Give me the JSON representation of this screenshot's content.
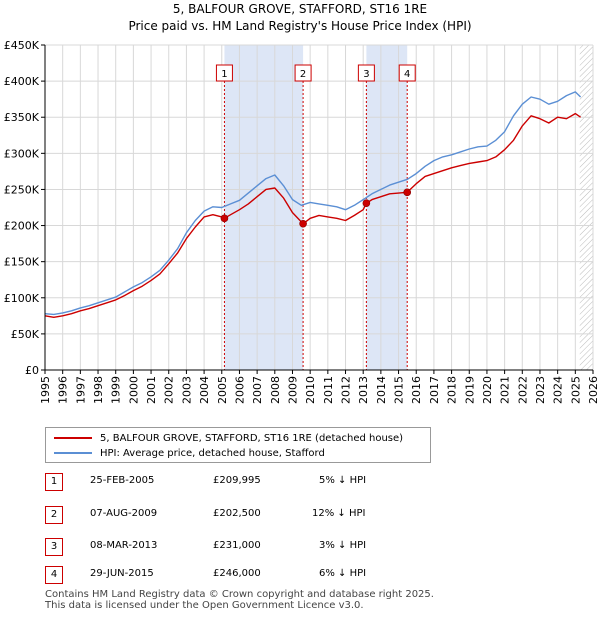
{
  "chart_data": {
    "type": "line",
    "title": "5, BALFOUR GROVE, STAFFORD, ST16 1RE",
    "subtitle": "Price paid vs. HM Land Registry's House Price Index (HPI)",
    "xlabel": "",
    "ylabel": "",
    "xlim": [
      1995,
      2026
    ],
    "ylim": [
      0,
      450000
    ],
    "x_ticks": [
      "1995",
      "1996",
      "1997",
      "1998",
      "1999",
      "2000",
      "2001",
      "2002",
      "2003",
      "2004",
      "2005",
      "2006",
      "2007",
      "2008",
      "2009",
      "2010",
      "2011",
      "2012",
      "2013",
      "2014",
      "2015",
      "2016",
      "2017",
      "2018",
      "2019",
      "2020",
      "2021",
      "2022",
      "2023",
      "2024",
      "2025",
      "2026"
    ],
    "y_ticks": [
      {
        "value": 0,
        "label": "£0"
      },
      {
        "value": 50000,
        "label": "£50K"
      },
      {
        "value": 100000,
        "label": "£100K"
      },
      {
        "value": 150000,
        "label": "£150K"
      },
      {
        "value": 200000,
        "label": "£200K"
      },
      {
        "value": 250000,
        "label": "£250K"
      },
      {
        "value": 300000,
        "label": "£300K"
      },
      {
        "value": 350000,
        "label": "£350K"
      },
      {
        "value": 400000,
        "label": "£400K"
      },
      {
        "value": 450000,
        "label": "£450K"
      }
    ],
    "grid": true,
    "series": [
      {
        "name": "5, BALFOUR GROVE, STAFFORD, ST16 1RE (detached house)",
        "color": "#cc0000",
        "x": [
          1995.0,
          1995.5,
          1996.0,
          1996.5,
          1997.0,
          1997.5,
          1998.0,
          1998.5,
          1999.0,
          1999.5,
          2000.0,
          2000.5,
          2001.0,
          2001.5,
          2002.0,
          2002.5,
          2003.0,
          2003.5,
          2004.0,
          2004.5,
          2005.0,
          2005.15,
          2005.5,
          2006.0,
          2006.5,
          2007.0,
          2007.5,
          2008.0,
          2008.5,
          2009.0,
          2009.5,
          2009.6,
          2010.0,
          2010.5,
          2011.0,
          2011.5,
          2012.0,
          2012.5,
          2013.0,
          2013.18,
          2013.5,
          2014.0,
          2014.5,
          2015.0,
          2015.49,
          2016.0,
          2016.5,
          2017.0,
          2017.5,
          2018.0,
          2018.5,
          2019.0,
          2019.5,
          2020.0,
          2020.5,
          2021.0,
          2021.5,
          2022.0,
          2022.5,
          2023.0,
          2023.5,
          2024.0,
          2024.5,
          2025.0,
          2025.3
        ],
        "values": [
          75000,
          73000,
          75000,
          78000,
          82000,
          85000,
          89000,
          93000,
          97000,
          103000,
          110000,
          116000,
          124000,
          133000,
          147000,
          162000,
          182000,
          198000,
          212000,
          215000,
          212000,
          209995,
          215000,
          222000,
          230000,
          240000,
          250000,
          252000,
          238000,
          218000,
          205000,
          202500,
          210000,
          214000,
          212000,
          210000,
          207000,
          214000,
          222000,
          231000,
          236000,
          240000,
          244000,
          245000,
          246000,
          258000,
          268000,
          272000,
          276000,
          280000,
          283000,
          286000,
          288000,
          290000,
          295000,
          305000,
          318000,
          338000,
          352000,
          348000,
          342000,
          350000,
          348000,
          355000,
          350000
        ]
      },
      {
        "name": "HPI: Average price, detached house, Stafford",
        "color": "#5b8fd4",
        "x": [
          1995.0,
          1995.5,
          1996.0,
          1996.5,
          1997.0,
          1997.5,
          1998.0,
          1998.5,
          1999.0,
          1999.5,
          2000.0,
          2000.5,
          2001.0,
          2001.5,
          2002.0,
          2002.5,
          2003.0,
          2003.5,
          2004.0,
          2004.5,
          2005.0,
          2005.5,
          2006.0,
          2006.5,
          2007.0,
          2007.5,
          2008.0,
          2008.5,
          2009.0,
          2009.5,
          2010.0,
          2010.5,
          2011.0,
          2011.5,
          2012.0,
          2012.5,
          2013.0,
          2013.5,
          2014.0,
          2014.5,
          2015.0,
          2015.5,
          2016.0,
          2016.5,
          2017.0,
          2017.5,
          2018.0,
          2018.5,
          2019.0,
          2019.5,
          2020.0,
          2020.5,
          2021.0,
          2021.5,
          2022.0,
          2022.5,
          2023.0,
          2023.5,
          2024.0,
          2024.5,
          2025.0,
          2025.3
        ],
        "values": [
          78000,
          77000,
          79000,
          82000,
          86000,
          89000,
          93000,
          97000,
          101000,
          108000,
          115000,
          121000,
          129000,
          138000,
          152000,
          168000,
          190000,
          207000,
          220000,
          226000,
          225000,
          230000,
          235000,
          245000,
          255000,
          265000,
          270000,
          255000,
          236000,
          228000,
          232000,
          230000,
          228000,
          226000,
          222000,
          228000,
          236000,
          244000,
          250000,
          256000,
          260000,
          264000,
          272000,
          282000,
          290000,
          295000,
          298000,
          302000,
          306000,
          309000,
          310000,
          318000,
          330000,
          352000,
          368000,
          378000,
          375000,
          368000,
          372000,
          380000,
          385000,
          378000
        ]
      }
    ],
    "sales": [
      {
        "num": "1",
        "x": 2005.15,
        "value": 209995
      },
      {
        "num": "2",
        "x": 2009.6,
        "value": 202500
      },
      {
        "num": "3",
        "x": 2013.18,
        "value": 231000
      },
      {
        "num": "4",
        "x": 2015.49,
        "value": 246000
      }
    ],
    "hpi_shade_ranges": [
      [
        2005.15,
        2009.6
      ],
      [
        2013.18,
        2015.49
      ]
    ],
    "future_hatch_from": 2025.25
  },
  "legend": {
    "property_label": "5, BALFOUR GROVE, STAFFORD, ST16 1RE (detached house)",
    "hpi_label": "HPI: Average price, detached house, Stafford"
  },
  "table": [
    {
      "num": "1",
      "date": "25-FEB-2005",
      "price": "£209,995",
      "hpi": "5% ↓ HPI"
    },
    {
      "num": "2",
      "date": "07-AUG-2009",
      "price": "£202,500",
      "hpi": "12% ↓ HPI"
    },
    {
      "num": "3",
      "date": "08-MAR-2013",
      "price": "£231,000",
      "hpi": "3% ↓ HPI"
    },
    {
      "num": "4",
      "date": "29-JUN-2015",
      "price": "£246,000",
      "hpi": "6% ↓ HPI"
    }
  ],
  "footer": {
    "line1": "Contains HM Land Registry data © Crown copyright and database right 2025.",
    "line2": "This data is licensed under the Open Government Licence v3.0."
  },
  "colors": {
    "property": "#cc0000",
    "hpi": "#5b8fd4",
    "shade": "#dde6f6",
    "grid": "#d8d8d8",
    "sale_line": "#cc0000"
  }
}
